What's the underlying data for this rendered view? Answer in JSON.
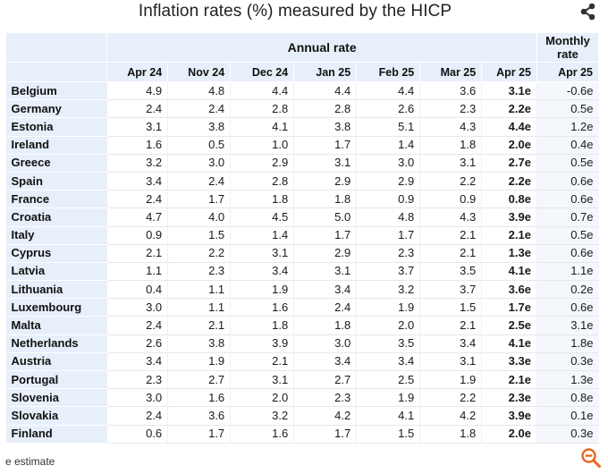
{
  "title": "Inflation rates (%) measured by the HICP",
  "icons": {
    "share": "share-icon",
    "zoom": "zoom-out-icon"
  },
  "colors": {
    "header_bg": "#e7effa",
    "zoom_accent": "#e8661c"
  },
  "table": {
    "group_header": "Annual rate",
    "monthly_header": "Monthly rate",
    "columns": [
      "Apr 24",
      "Nov 24",
      "Dec 24",
      "Jan 25",
      "Feb 25",
      "Mar 25",
      "Apr 25",
      "Apr 25"
    ],
    "rows": [
      {
        "country": "Belgium",
        "values": [
          "4.9",
          "4.8",
          "4.4",
          "4.4",
          "4.4",
          "3.6",
          "3.1e",
          "-0.6e"
        ]
      },
      {
        "country": "Germany",
        "values": [
          "2.4",
          "2.4",
          "2.8",
          "2.8",
          "2.6",
          "2.3",
          "2.2e",
          "0.5e"
        ]
      },
      {
        "country": "Estonia",
        "values": [
          "3.1",
          "3.8",
          "4.1",
          "3.8",
          "5.1",
          "4.3",
          "4.4e",
          "1.2e"
        ]
      },
      {
        "country": "Ireland",
        "values": [
          "1.6",
          "0.5",
          "1.0",
          "1.7",
          "1.4",
          "1.8",
          "2.0e",
          "0.4e"
        ]
      },
      {
        "country": "Greece",
        "values": [
          "3.2",
          "3.0",
          "2.9",
          "3.1",
          "3.0",
          "3.1",
          "2.7e",
          "0.5e"
        ]
      },
      {
        "country": "Spain",
        "values": [
          "3.4",
          "2.4",
          "2.8",
          "2.9",
          "2.9",
          "2.2",
          "2.2e",
          "0.6e"
        ]
      },
      {
        "country": "France",
        "values": [
          "2.4",
          "1.7",
          "1.8",
          "1.8",
          "0.9",
          "0.9",
          "0.8e",
          "0.6e"
        ]
      },
      {
        "country": "Croatia",
        "values": [
          "4.7",
          "4.0",
          "4.5",
          "5.0",
          "4.8",
          "4.3",
          "3.9e",
          "0.7e"
        ]
      },
      {
        "country": "Italy",
        "values": [
          "0.9",
          "1.5",
          "1.4",
          "1.7",
          "1.7",
          "2.1",
          "2.1e",
          "0.5e"
        ]
      },
      {
        "country": "Cyprus",
        "values": [
          "2.1",
          "2.2",
          "3.1",
          "2.9",
          "2.3",
          "2.1",
          "1.3e",
          "0.6e"
        ]
      },
      {
        "country": "Latvia",
        "values": [
          "1.1",
          "2.3",
          "3.4",
          "3.1",
          "3.7",
          "3.5",
          "4.1e",
          "1.1e"
        ]
      },
      {
        "country": "Lithuania",
        "values": [
          "0.4",
          "1.1",
          "1.9",
          "3.4",
          "3.2",
          "3.7",
          "3.6e",
          "0.2e"
        ]
      },
      {
        "country": "Luxembourg",
        "values": [
          "3.0",
          "1.1",
          "1.6",
          "2.4",
          "1.9",
          "1.5",
          "1.7e",
          "0.6e"
        ]
      },
      {
        "country": "Malta",
        "values": [
          "2.4",
          "2.1",
          "1.8",
          "1.8",
          "2.0",
          "2.1",
          "2.5e",
          "3.1e"
        ]
      },
      {
        "country": "Netherlands",
        "values": [
          "2.6",
          "3.8",
          "3.9",
          "3.0",
          "3.5",
          "3.4",
          "4.1e",
          "1.8e"
        ]
      },
      {
        "country": "Austria",
        "values": [
          "3.4",
          "1.9",
          "2.1",
          "3.4",
          "3.4",
          "3.1",
          "3.3e",
          "0.3e"
        ]
      },
      {
        "country": "Portugal",
        "values": [
          "2.3",
          "2.7",
          "3.1",
          "2.7",
          "2.5",
          "1.9",
          "2.1e",
          "1.3e"
        ]
      },
      {
        "country": "Slovenia",
        "values": [
          "3.0",
          "1.6",
          "2.0",
          "2.3",
          "1.9",
          "2.2",
          "2.3e",
          "0.8e"
        ]
      },
      {
        "country": "Slovakia",
        "values": [
          "2.4",
          "3.6",
          "3.2",
          "4.2",
          "4.1",
          "4.2",
          "3.9e",
          "0.1e"
        ]
      },
      {
        "country": "Finland",
        "values": [
          "0.6",
          "1.7",
          "1.6",
          "1.7",
          "1.5",
          "1.8",
          "2.0e",
          "0.3e"
        ]
      }
    ]
  },
  "footnote": "e estimate"
}
